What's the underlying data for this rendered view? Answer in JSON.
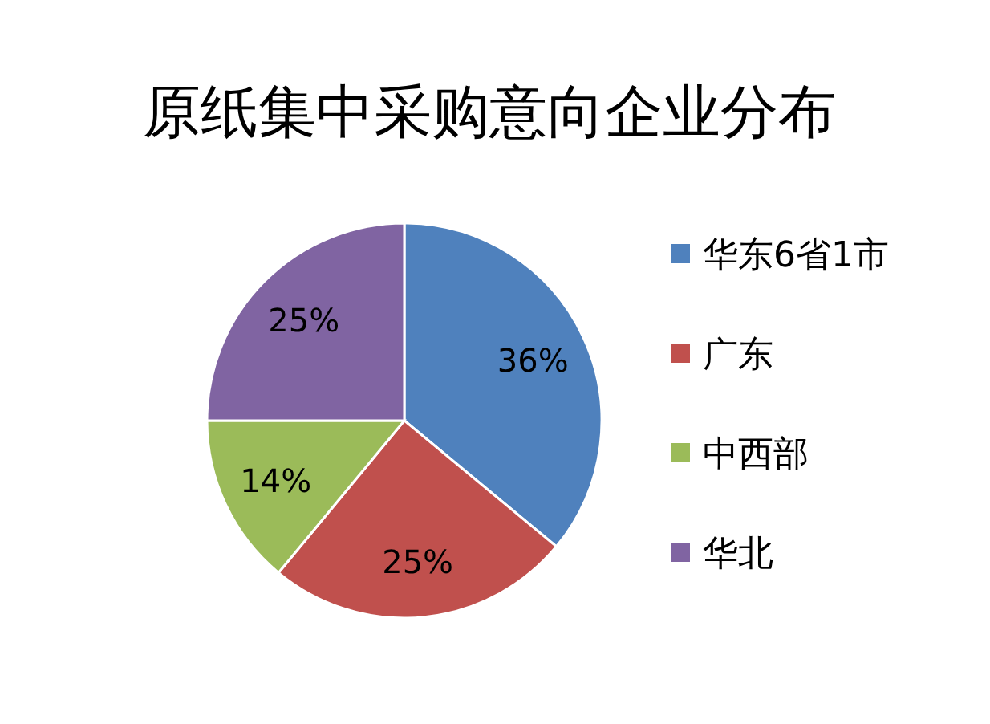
{
  "chart_data": {
    "type": "pie",
    "title": "原纸集中采购意向企业分布",
    "categories": [
      "华东6省1市",
      "广东",
      "中西部",
      "华北"
    ],
    "values": [
      36,
      25,
      14,
      25
    ],
    "colors": [
      "#4f81bd",
      "#c0504d",
      "#9bbb59",
      "#8064a2"
    ],
    "value_labels": [
      "36%",
      "25%",
      "14%",
      "25%"
    ],
    "legend": "right"
  }
}
